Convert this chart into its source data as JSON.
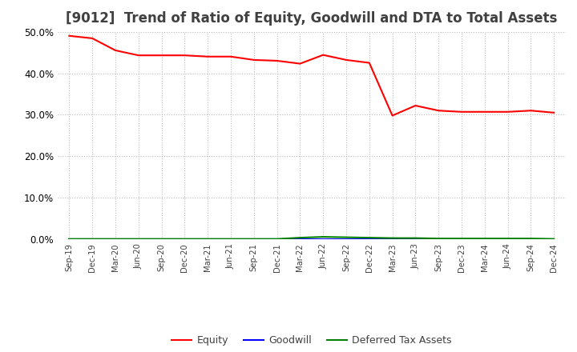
{
  "title": "[9012]  Trend of Ratio of Equity, Goodwill and DTA to Total Assets",
  "x_labels": [
    "Sep-19",
    "Dec-19",
    "Mar-20",
    "Jun-20",
    "Sep-20",
    "Dec-20",
    "Mar-21",
    "Jun-21",
    "Sep-21",
    "Dec-21",
    "Mar-22",
    "Jun-22",
    "Sep-22",
    "Dec-22",
    "Mar-23",
    "Jun-23",
    "Sep-23",
    "Dec-23",
    "Mar-24",
    "Jun-24",
    "Sep-24",
    "Dec-24"
  ],
  "equity": [
    0.49,
    0.484,
    0.455,
    0.443,
    0.443,
    0.443,
    0.44,
    0.44,
    0.432,
    0.43,
    0.423,
    0.444,
    0.432,
    0.425,
    0.298,
    0.322,
    0.31,
    0.307,
    0.307,
    0.307,
    0.31,
    0.305
  ],
  "goodwill": [
    0.0,
    0.0,
    0.0,
    0.0,
    0.0,
    0.0,
    0.0,
    0.0,
    0.0,
    0.0,
    0.0,
    0.0,
    0.0,
    0.0,
    0.0,
    0.0,
    0.0,
    0.0,
    0.0,
    0.0,
    0.0,
    0.0
  ],
  "dta": [
    0.001,
    0.001,
    0.001,
    0.001,
    0.001,
    0.001,
    0.001,
    0.001,
    0.001,
    0.001,
    0.004,
    0.006,
    0.005,
    0.004,
    0.003,
    0.003,
    0.002,
    0.002,
    0.002,
    0.002,
    0.002,
    0.001
  ],
  "equity_color": "#FF0000",
  "goodwill_color": "#0000FF",
  "dta_color": "#008000",
  "ylim": [
    0.0,
    0.5
  ],
  "yticks": [
    0.0,
    0.1,
    0.2,
    0.3,
    0.4,
    0.5
  ],
  "background_color": "#FFFFFF",
  "plot_bg_color": "#FFFFFF",
  "grid_color": "#BBBBBB",
  "title_fontsize": 12,
  "title_color": "#404040"
}
